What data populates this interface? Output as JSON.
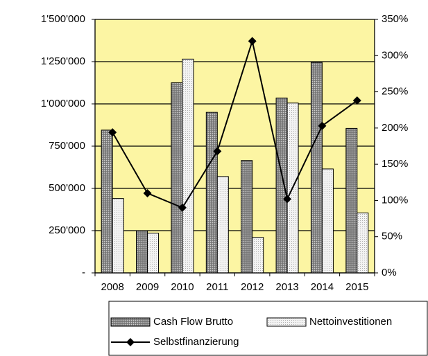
{
  "chart_data": {
    "type": "bar-line",
    "categories": [
      "2008",
      "2009",
      "2010",
      "2011",
      "2012",
      "2013",
      "2014",
      "2015"
    ],
    "series": [
      {
        "name": "Cash Flow Brutto",
        "type": "bar",
        "color": "#8c8c8c",
        "values": [
          845000,
          250000,
          1125000,
          950000,
          665000,
          1035000,
          1245000,
          855000
        ]
      },
      {
        "name": "Nettoinvestitionen",
        "type": "bar",
        "color": "#f2f2f2",
        "values": [
          440000,
          235000,
          1265000,
          570000,
          210000,
          1005000,
          615000,
          355000
        ]
      },
      {
        "name": "Selbstfinanzierung",
        "type": "line",
        "axis": "y2",
        "color": "#000000",
        "values": [
          194,
          110,
          90,
          168,
          320,
          102,
          203,
          238
        ]
      }
    ],
    "ylim": [
      0,
      1500000
    ],
    "yticks": [
      {
        "value": 0,
        "label": "-"
      },
      {
        "value": 250000,
        "label": "250'000"
      },
      {
        "value": 500000,
        "label": "500'000"
      },
      {
        "value": 750000,
        "label": "750'000"
      },
      {
        "value": 1000000,
        "label": "1'000'000"
      },
      {
        "value": 1250000,
        "label": "1'250'000"
      },
      {
        "value": 1500000,
        "label": "1'500'000"
      }
    ],
    "y2lim": [
      0,
      350
    ],
    "y2ticks": [
      {
        "value": 0,
        "label": "0%"
      },
      {
        "value": 50,
        "label": "50%"
      },
      {
        "value": 100,
        "label": "100%"
      },
      {
        "value": 150,
        "label": "150%"
      },
      {
        "value": 200,
        "label": "200%"
      },
      {
        "value": 250,
        "label": "250%"
      },
      {
        "value": 300,
        "label": "300%"
      },
      {
        "value": 350,
        "label": "350%"
      }
    ],
    "grid": true,
    "plot_background": "#fcf5a3",
    "legend": "bottom"
  }
}
